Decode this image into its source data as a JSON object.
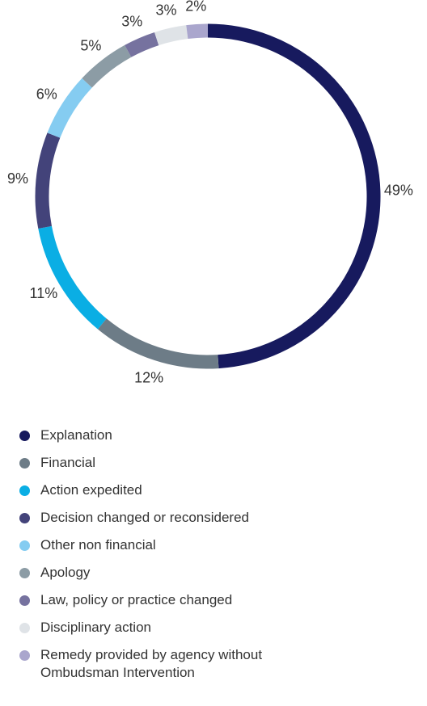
{
  "chart_data": {
    "type": "pie",
    "variant": "donut",
    "title": "",
    "categories": [
      "Explanation",
      "Financial",
      "Action expedited",
      "Decision changed or reconsidered",
      "Other non financial",
      "Apology",
      "Law, policy or practice changed",
      "Disciplinary action",
      "Remedy provided by agency without Ombudsman Intervention"
    ],
    "values": [
      49,
      12,
      11,
      9,
      6,
      5,
      3,
      3,
      2
    ],
    "value_labels": [
      "49%",
      "12%",
      "11%",
      "9%",
      "6%",
      "5%",
      "3%",
      "3%",
      "2%"
    ],
    "colors": [
      "#171a5e",
      "#6d7c87",
      "#0aaee4",
      "#43437a",
      "#85ccf1",
      "#8c9ca5",
      "#76729f",
      "#dfe3e7",
      "#aaa6cd"
    ],
    "legend_position": "bottom"
  }
}
